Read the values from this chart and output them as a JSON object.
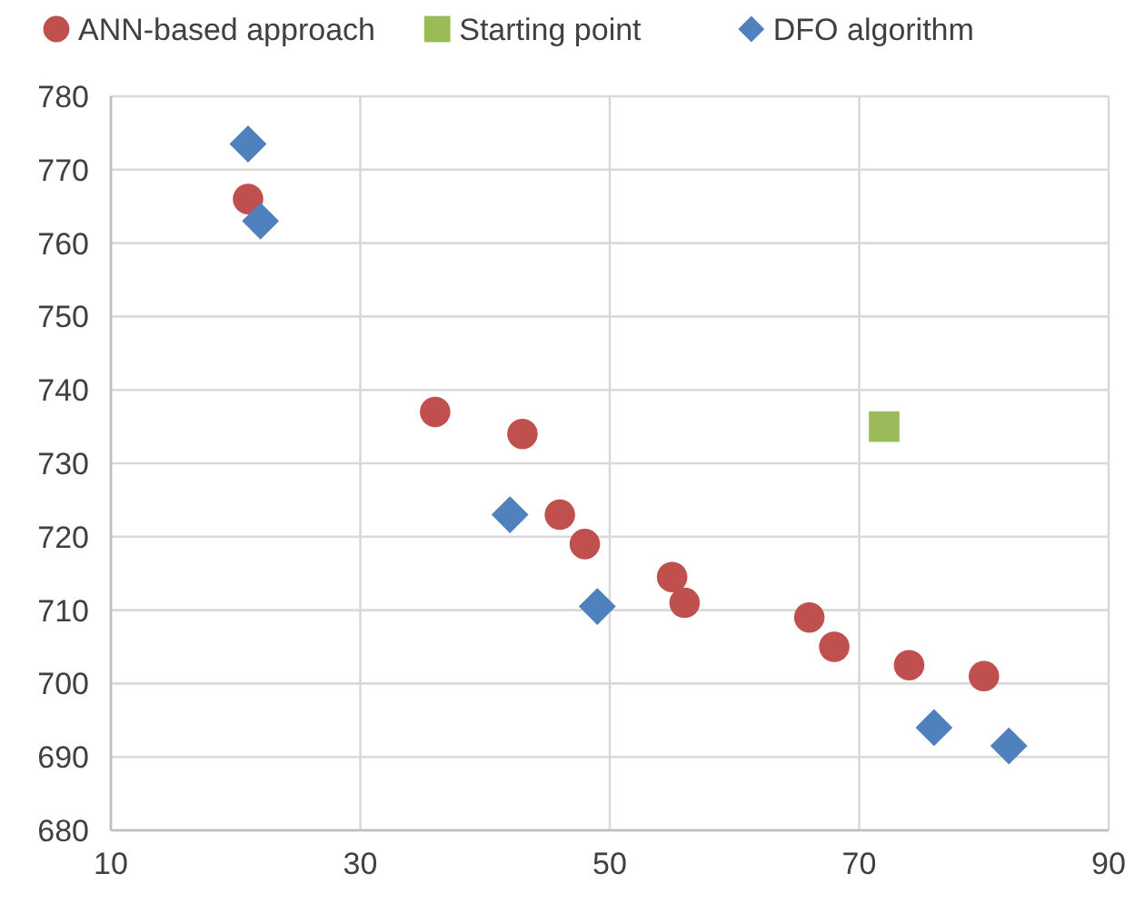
{
  "chart_data": {
    "type": "scatter",
    "xlim": [
      10,
      90
    ],
    "xticks": [
      10,
      30,
      50,
      70,
      90
    ],
    "ylim": [
      680,
      780
    ],
    "yticks": [
      680,
      690,
      700,
      710,
      720,
      730,
      740,
      750,
      760,
      770,
      780
    ],
    "grid": true,
    "legend": "top",
    "series": [
      {
        "name": "ANN-based approach",
        "color": "#c0504d",
        "marker": "circle",
        "x": [
          21,
          36,
          43,
          46,
          48,
          55,
          56,
          66,
          68,
          74,
          80
        ],
        "values": [
          766,
          737,
          734,
          723,
          719,
          714.5,
          711,
          709,
          705,
          702.5,
          701
        ]
      },
      {
        "name": "Starting point",
        "color": "#9bbb59",
        "marker": "square",
        "x": [
          72
        ],
        "values": [
          735
        ]
      },
      {
        "name": "DFO algorithm",
        "color": "#4f81bd",
        "marker": "diamond",
        "x": [
          21,
          22,
          42,
          49,
          76,
          82
        ],
        "values": [
          773.5,
          763,
          723,
          710.5,
          694,
          691.5
        ]
      }
    ]
  }
}
